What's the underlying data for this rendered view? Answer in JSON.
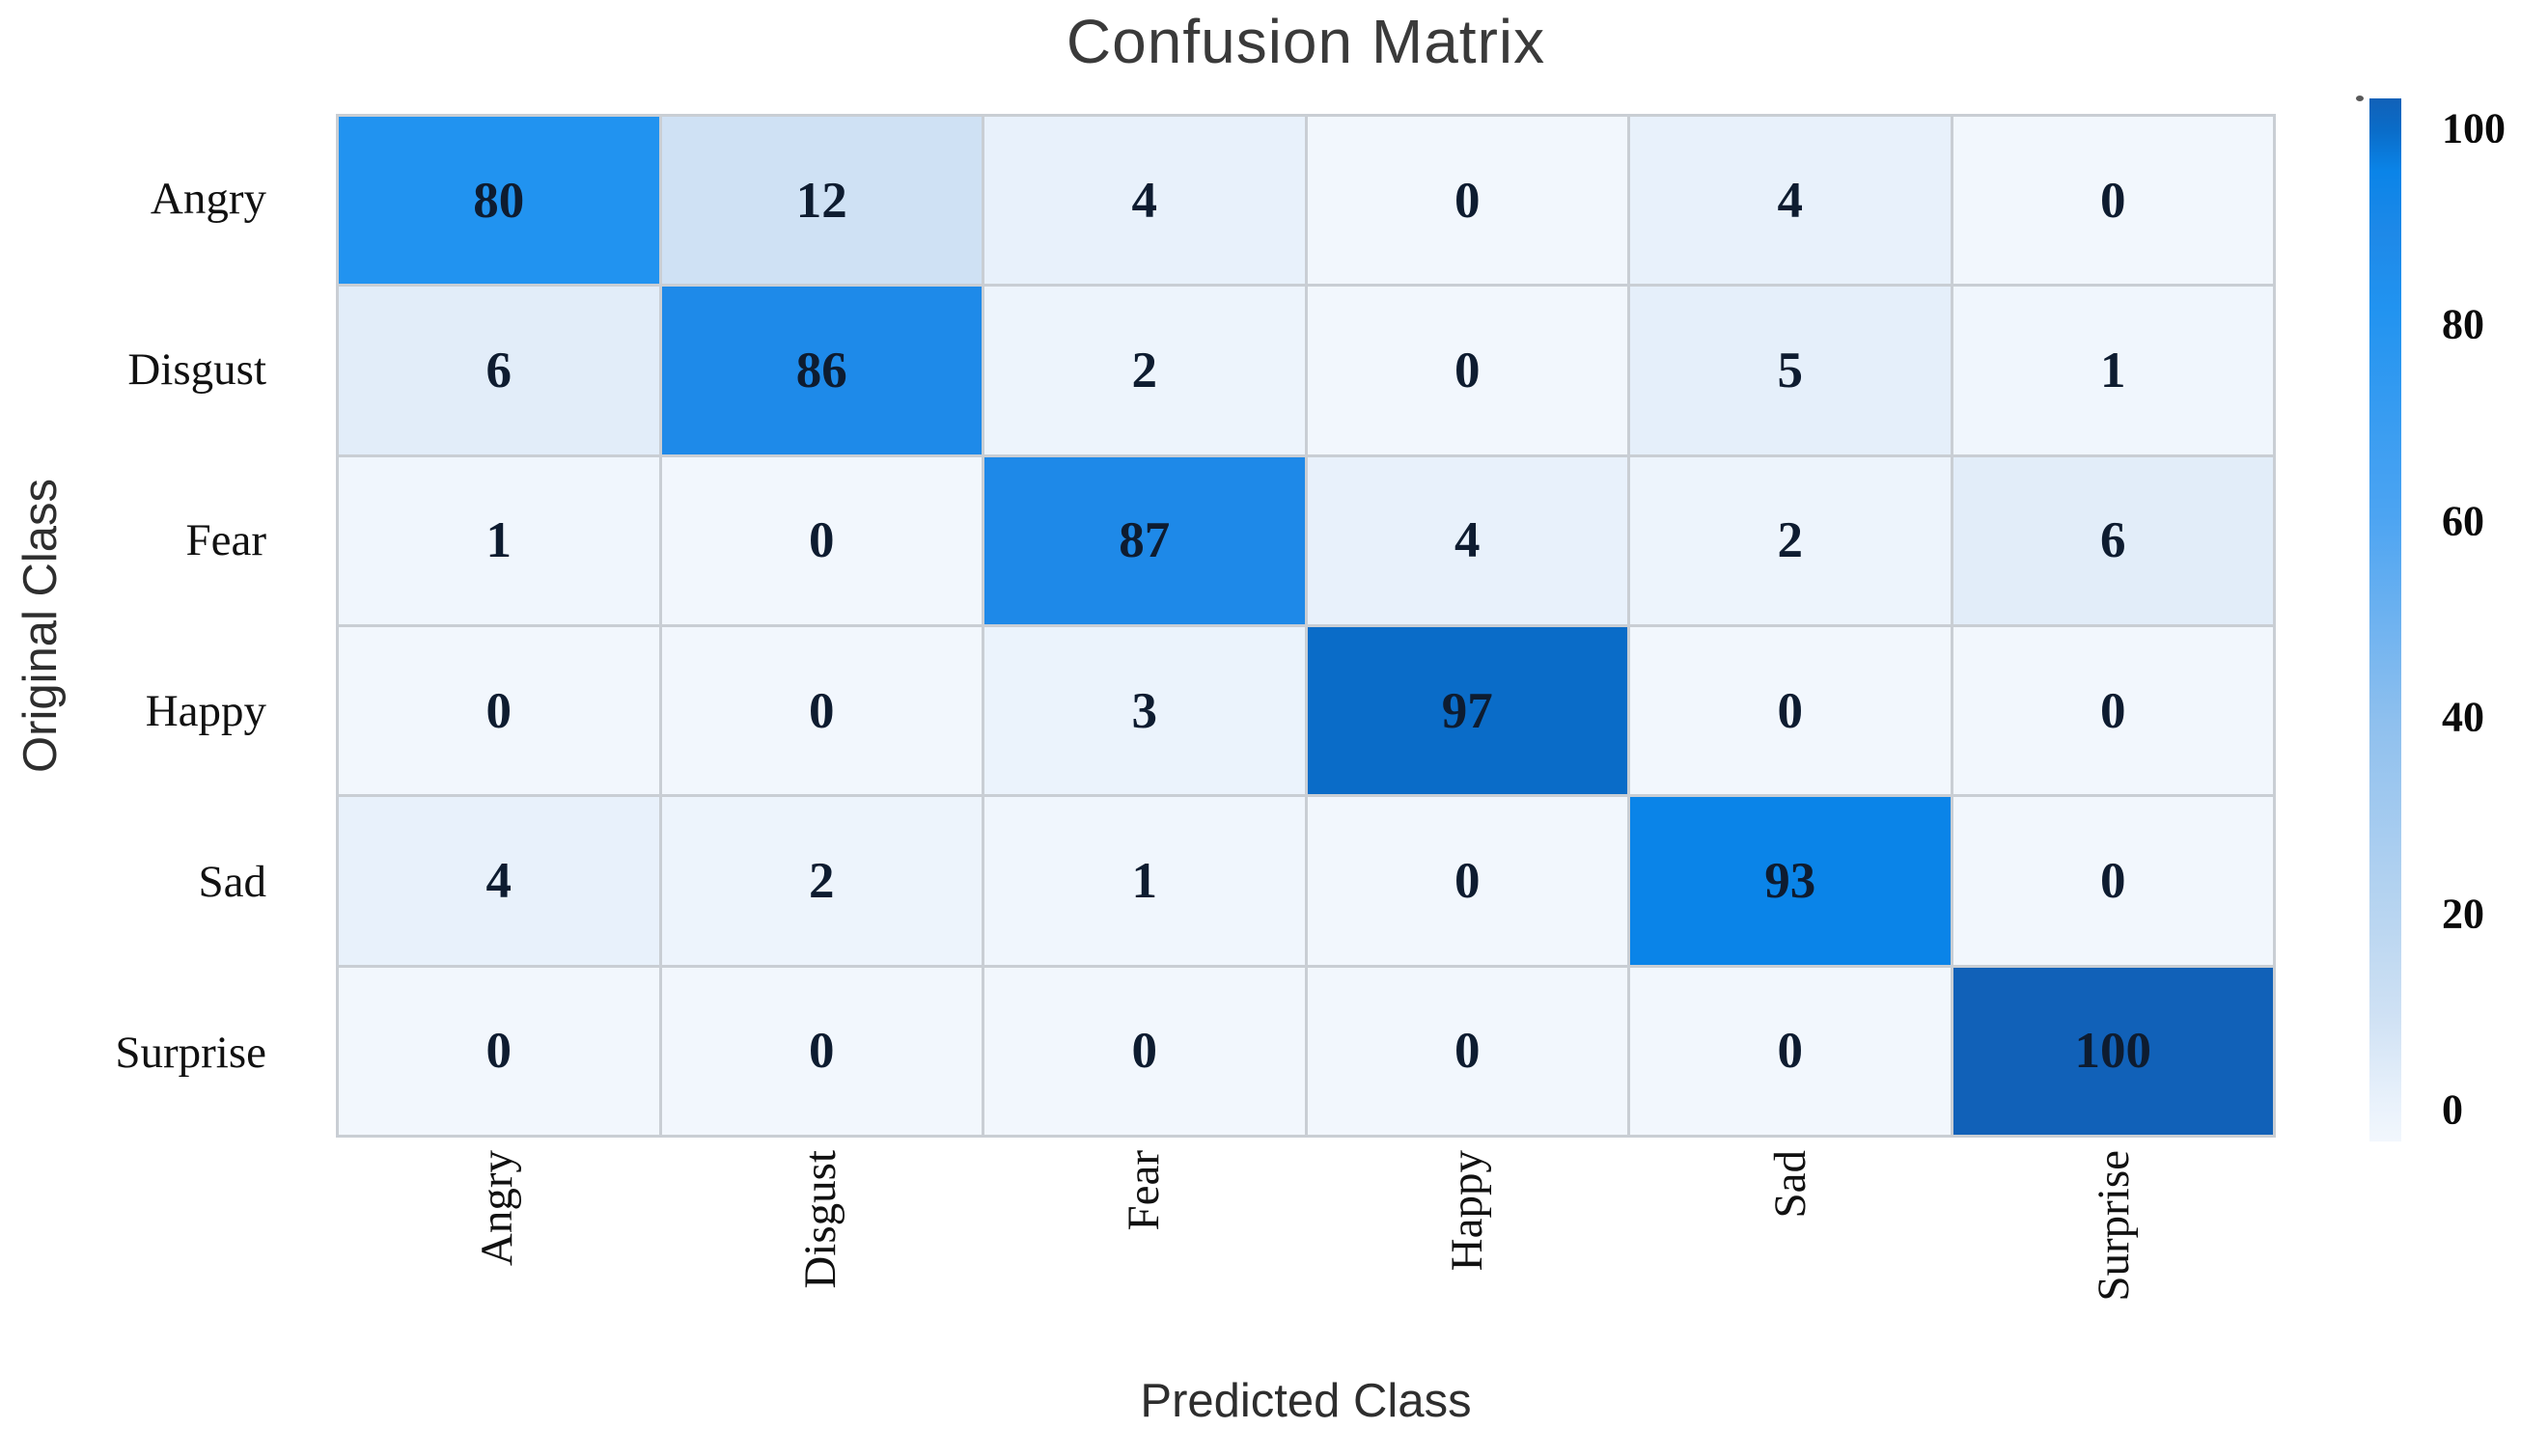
{
  "chart_data": {
    "type": "heatmap",
    "title": "Confusion Matrix",
    "xlabel": "Predicted Class",
    "ylabel": "Original Class",
    "categories": [
      "Angry",
      "Disgust",
      "Fear",
      "Happy",
      "Sad",
      "Surprise"
    ],
    "matrix": [
      [
        80,
        12,
        4,
        0,
        4,
        0
      ],
      [
        6,
        86,
        2,
        0,
        5,
        1
      ],
      [
        1,
        0,
        87,
        4,
        2,
        6
      ],
      [
        0,
        0,
        3,
        97,
        0,
        0
      ],
      [
        4,
        2,
        1,
        0,
        93,
        0
      ],
      [
        0,
        0,
        0,
        0,
        0,
        100
      ]
    ],
    "colorbar": {
      "position": "right",
      "min": 0,
      "max": 100,
      "ticks": [
        100,
        80,
        60,
        40,
        20,
        0
      ]
    },
    "colormap_stops": [
      {
        "v": 0,
        "c": "#f2f7fd"
      },
      {
        "v": 4,
        "c": "#e8f1fb"
      },
      {
        "v": 12,
        "c": "#cfe1f4"
      },
      {
        "v": 20,
        "c": "#bcd7f1"
      },
      {
        "v": 40,
        "c": "#8fc0ee"
      },
      {
        "v": 60,
        "c": "#4ca4f2"
      },
      {
        "v": 80,
        "c": "#2193f0"
      },
      {
        "v": 87,
        "c": "#1e89e8"
      },
      {
        "v": 93,
        "c": "#0a84e8"
      },
      {
        "v": 97,
        "c": "#0a6cc8"
      },
      {
        "v": 100,
        "c": "#1161b8"
      }
    ],
    "grid": "cell borders on",
    "legend_position": "colorbar right"
  },
  "colors": {
    "cell_text": "#0e1c30",
    "title_text": "#3a3a3a",
    "gridline": "#c9ced4",
    "background": "#ffffff"
  }
}
